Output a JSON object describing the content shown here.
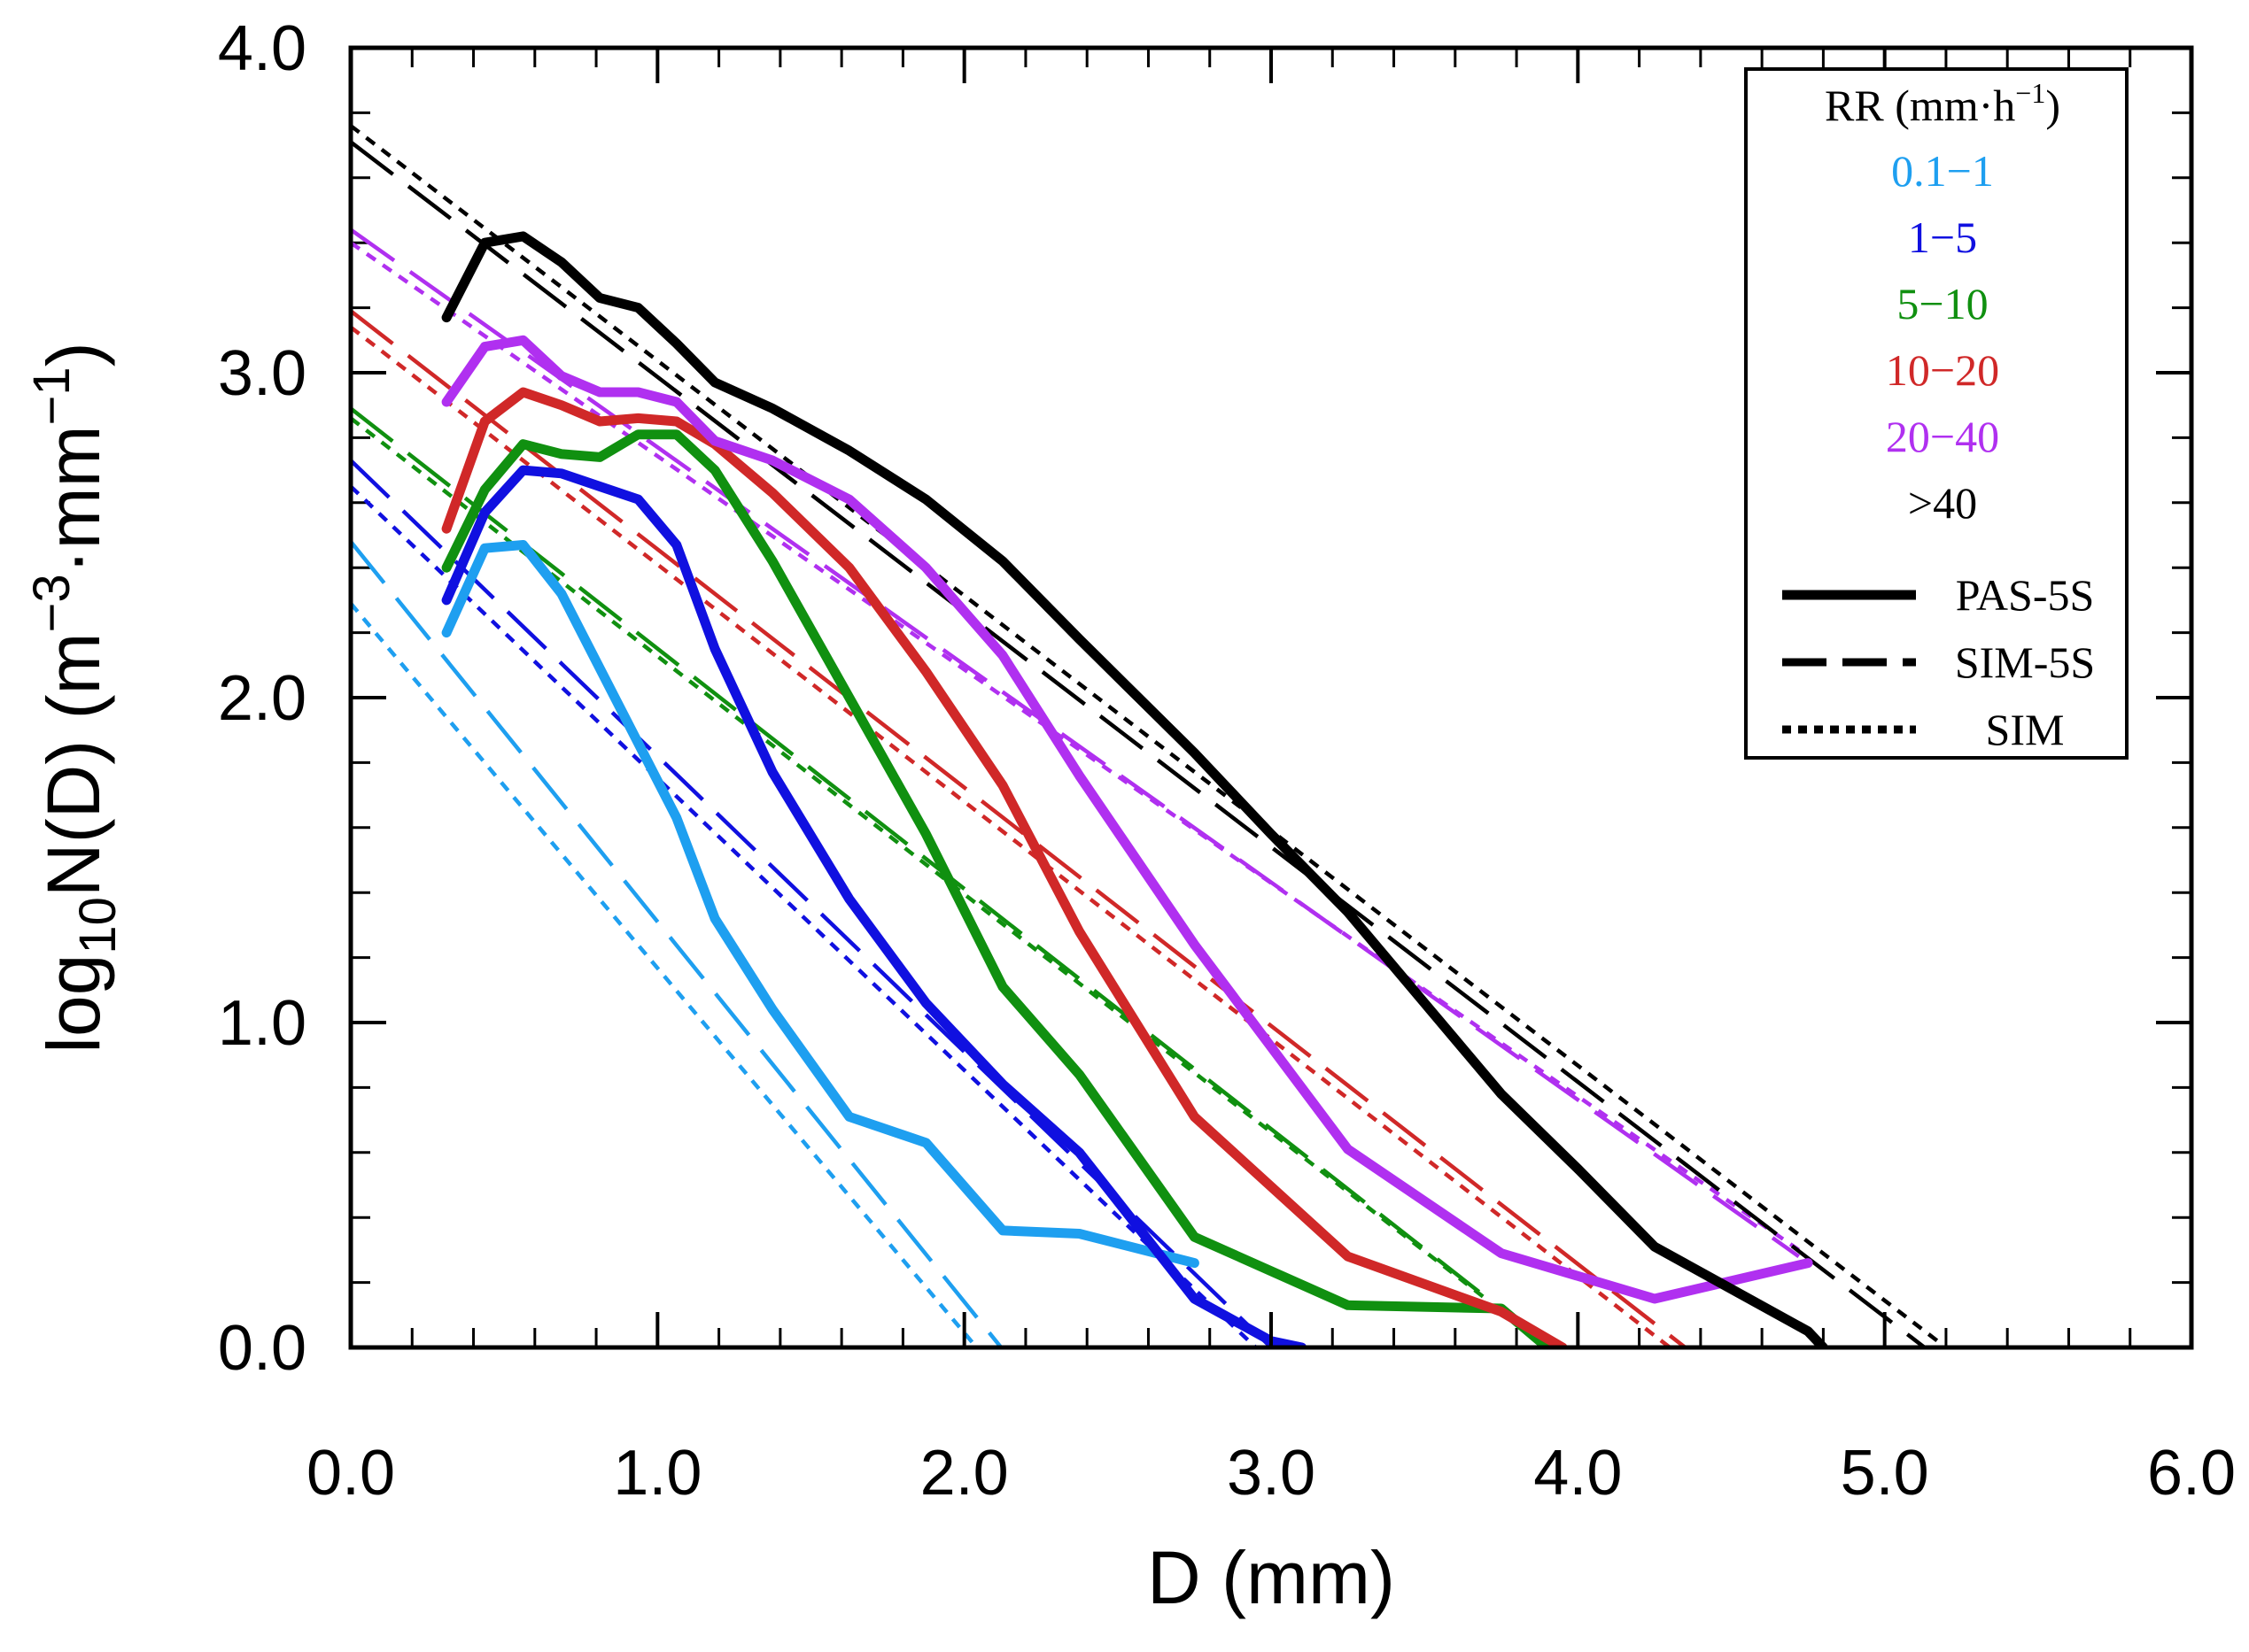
{
  "chart_data": {
    "type": "line",
    "xlabel": "D (mm)",
    "ylabel_parts": {
      "prefix": "log",
      "sub": "10",
      "mid": "N(D) (m",
      "sup1": "−3",
      "dot": "·mm",
      "sup2": "−1",
      "end": ")"
    },
    "xlim": [
      0,
      6
    ],
    "ylim": [
      0,
      4
    ],
    "xticks": [
      "0.0",
      "1.0",
      "2.0",
      "3.0",
      "4.0",
      "5.0",
      "6.0"
    ],
    "yticks": [
      "0.0",
      "1.0",
      "2.0",
      "3.0",
      "4.0"
    ],
    "legend": {
      "title_parts": {
        "base": "RR (mm·h",
        "sup": "−1",
        "end": ")"
      },
      "categories": [
        {
          "label": "0.1−1",
          "color": "#1e9ff0"
        },
        {
          "label": "1−5",
          "color": "#1010e0"
        },
        {
          "label": "5−10",
          "color": "#109010"
        },
        {
          "label": "10−20",
          "color": "#d02828"
        },
        {
          "label": "20−40",
          "color": "#b030f0"
        },
        {
          "label": ">40",
          "color": "#000000"
        }
      ],
      "styles": [
        {
          "label": "PAS-5S",
          "dash": "solid"
        },
        {
          "label": "SIM-5S",
          "dash": "dashed"
        },
        {
          "label": "SIM",
          "dash": "dotted"
        }
      ]
    },
    "series": [
      {
        "name": "0.1−1 PAS-5S",
        "color": "#1e9ff0",
        "style": "solid",
        "x": [
          0.312,
          0.437,
          0.562,
          0.687,
          0.812,
          0.937,
          1.062,
          1.187,
          1.375,
          1.625,
          1.875,
          2.125,
          2.375,
          2.75
        ],
        "y": [
          2.2,
          2.46,
          2.47,
          2.32,
          2.09,
          1.86,
          1.63,
          1.32,
          1.04,
          0.71,
          0.63,
          0.36,
          0.35,
          0.26
        ]
      },
      {
        "name": "0.1−1 SIM-5S",
        "color": "#1e9ff0",
        "style": "dashed",
        "x": [
          0,
          2.12
        ],
        "y": [
          2.48,
          0
        ]
      },
      {
        "name": "0.1−1 SIM",
        "color": "#1e9ff0",
        "style": "dotted",
        "x": [
          0,
          2.04
        ],
        "y": [
          2.29,
          0
        ]
      },
      {
        "name": "1−5 PAS-5S",
        "color": "#1010e0",
        "style": "solid",
        "x": [
          0.312,
          0.437,
          0.562,
          0.687,
          0.812,
          0.937,
          1.062,
          1.187,
          1.375,
          1.625,
          1.875,
          2.125,
          2.375,
          2.75,
          3.0,
          3.1
        ],
        "y": [
          2.3,
          2.57,
          2.7,
          2.69,
          2.65,
          2.61,
          2.47,
          2.15,
          1.77,
          1.38,
          1.06,
          0.81,
          0.6,
          0.15,
          0.02,
          0.0
        ]
      },
      {
        "name": "1−5 SIM-5S",
        "color": "#1010e0",
        "style": "dashed",
        "x": [
          0,
          3.0
        ],
        "y": [
          2.73,
          0
        ]
      },
      {
        "name": "1−5 SIM",
        "color": "#1010e0",
        "style": "dotted",
        "x": [
          0,
          2.95
        ],
        "y": [
          2.65,
          0
        ]
      },
      {
        "name": "5−10 PAS-5S",
        "color": "#109010",
        "style": "solid",
        "x": [
          0.312,
          0.437,
          0.562,
          0.687,
          0.812,
          0.937,
          1.062,
          1.187,
          1.375,
          1.625,
          1.875,
          2.125,
          2.375,
          2.75,
          3.25,
          3.75,
          3.9
        ],
        "y": [
          2.4,
          2.64,
          2.78,
          2.75,
          2.74,
          2.81,
          2.81,
          2.7,
          2.42,
          2.0,
          1.58,
          1.11,
          0.84,
          0.34,
          0.13,
          0.12,
          0.0
        ]
      },
      {
        "name": "5−10 SIM-5S",
        "color": "#109010",
        "style": "dashed",
        "x": [
          0,
          3.72
        ],
        "y": [
          2.89,
          0.14
        ]
      },
      {
        "name": "5−10 SIM",
        "color": "#109010",
        "style": "dotted",
        "x": [
          0,
          3.7
        ],
        "y": [
          2.86,
          0.15
        ]
      },
      {
        "name": "10−20 PAS-5S",
        "color": "#d02828",
        "style": "solid",
        "x": [
          0.312,
          0.437,
          0.562,
          0.687,
          0.812,
          0.937,
          1.062,
          1.187,
          1.375,
          1.625,
          1.875,
          2.125,
          2.375,
          2.75,
          3.25,
          3.75,
          3.95
        ],
        "y": [
          2.52,
          2.85,
          2.94,
          2.9,
          2.85,
          2.86,
          2.85,
          2.78,
          2.63,
          2.4,
          2.08,
          1.73,
          1.28,
          0.71,
          0.28,
          0.11,
          0.0
        ]
      },
      {
        "name": "10−20 SIM-5S",
        "color": "#d02828",
        "style": "dashed",
        "x": [
          0,
          4.35
        ],
        "y": [
          3.19,
          0
        ]
      },
      {
        "name": "10−20 SIM",
        "color": "#d02828",
        "style": "dotted",
        "x": [
          0,
          4.3
        ],
        "y": [
          3.14,
          0
        ]
      },
      {
        "name": "20−40 PAS-5S",
        "color": "#b030f0",
        "style": "solid",
        "x": [
          0.312,
          0.437,
          0.562,
          0.687,
          0.812,
          0.937,
          1.062,
          1.187,
          1.375,
          1.625,
          1.875,
          2.125,
          2.375,
          2.75,
          3.25,
          3.75,
          4.25,
          4.75
        ],
        "y": [
          2.91,
          3.08,
          3.1,
          2.99,
          2.94,
          2.94,
          2.91,
          2.79,
          2.73,
          2.61,
          2.4,
          2.13,
          1.76,
          1.24,
          0.61,
          0.29,
          0.15,
          0.26
        ]
      },
      {
        "name": "20−40 SIM-5S",
        "color": "#b030f0",
        "style": "dashed",
        "x": [
          0,
          4.72
        ],
        "y": [
          3.44,
          0.28
        ]
      },
      {
        "name": "20−40 SIM",
        "color": "#b030f0",
        "style": "dotted",
        "x": [
          0,
          4.72
        ],
        "y": [
          3.4,
          0.3
        ]
      },
      {
        "name": ">40 PAS-5S",
        "color": "#000000",
        "style": "solid",
        "x": [
          0.312,
          0.437,
          0.562,
          0.687,
          0.812,
          0.937,
          1.062,
          1.187,
          1.375,
          1.625,
          1.875,
          2.125,
          2.375,
          2.75,
          3.0,
          3.25,
          3.5,
          3.75,
          4.0,
          4.25,
          4.5,
          4.75,
          4.8
        ],
        "y": [
          3.17,
          3.4,
          3.42,
          3.34,
          3.23,
          3.2,
          3.09,
          2.97,
          2.89,
          2.76,
          2.61,
          2.42,
          2.18,
          1.83,
          1.58,
          1.34,
          1.06,
          0.78,
          0.55,
          0.31,
          0.18,
          0.05,
          0.0
        ]
      },
      {
        "name": ">40 SIM-5S",
        "color": "#000000",
        "style": "dashed",
        "x": [
          0,
          5.13
        ],
        "y": [
          3.71,
          0
        ]
      },
      {
        "name": ">40 SIM",
        "color": "#000000",
        "style": "dotted",
        "x": [
          0,
          5.2
        ],
        "y": [
          3.76,
          0
        ]
      }
    ]
  }
}
